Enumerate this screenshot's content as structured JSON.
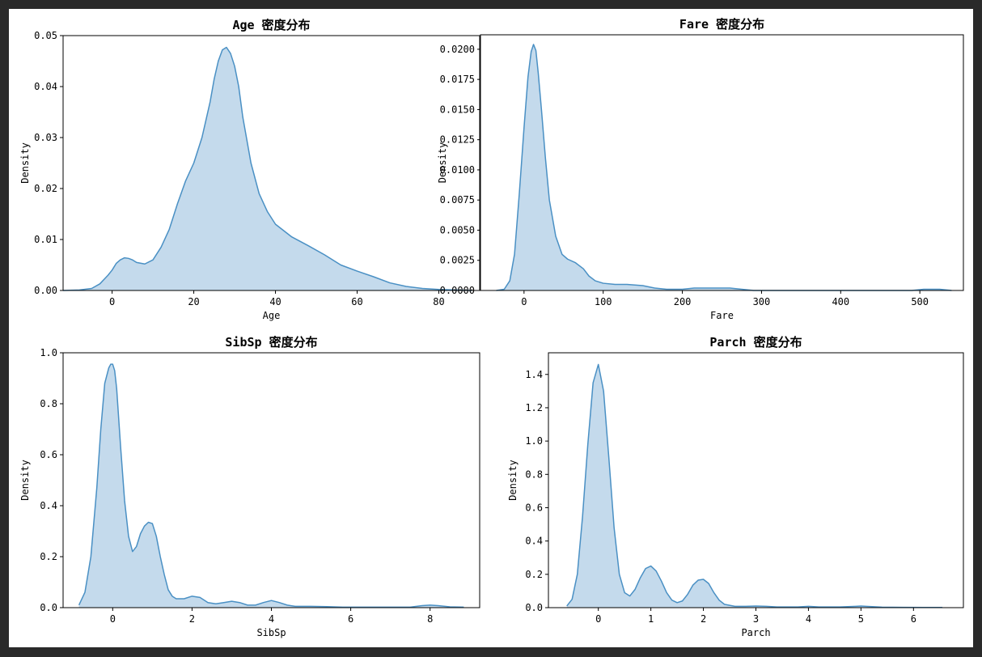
{
  "figure": {
    "background": "#ffffff",
    "frame_color": "#2a2a2a"
  },
  "style": {
    "line_color": "#4a90c4",
    "fill_color": "#c4daec"
  },
  "chart_data": [
    {
      "type": "area",
      "title": "Age 密度分布",
      "xlabel": "Age",
      "ylabel": "Density",
      "xlim": [
        -12,
        90
      ],
      "ylim": [
        0,
        0.05
      ],
      "xticks": [
        0,
        20,
        40,
        60,
        80
      ],
      "xtick_labels": [
        "0",
        "20",
        "40",
        "60",
        "80"
      ],
      "yticks": [
        0,
        0.01,
        0.02,
        0.03,
        0.04,
        0.05
      ],
      "ytick_labels": [
        "0.00",
        "0.01",
        "0.02",
        "0.03",
        "0.04",
        "0.05"
      ],
      "grid": false,
      "series": [
        {
          "x": [
            -12,
            -8,
            -5,
            -3,
            -1,
            0,
            1,
            2,
            3,
            4,
            5,
            6,
            8,
            10,
            12,
            14,
            16,
            18,
            20,
            22,
            24,
            25,
            26,
            27,
            28,
            29,
            30,
            31,
            32,
            34,
            36,
            38,
            40,
            44,
            48,
            52,
            56,
            60,
            64,
            68,
            72,
            76,
            80,
            84,
            88
          ],
          "y": [
            0,
            0.0001,
            0.0004,
            0.0013,
            0.003,
            0.004,
            0.0053,
            0.006,
            0.0064,
            0.0063,
            0.006,
            0.0055,
            0.0052,
            0.006,
            0.0085,
            0.012,
            0.017,
            0.0215,
            0.025,
            0.03,
            0.037,
            0.0415,
            0.045,
            0.0472,
            0.0477,
            0.0465,
            0.044,
            0.04,
            0.034,
            0.025,
            0.019,
            0.0155,
            0.013,
            0.0105,
            0.0088,
            0.007,
            0.005,
            0.0038,
            0.0027,
            0.0015,
            0.0008,
            0.0004,
            0.0002,
            0.0001,
            0
          ]
        }
      ]
    },
    {
      "type": "area",
      "title": "Fare 密度分布",
      "xlabel": "Fare",
      "ylabel": "Density",
      "xlim": [
        -55,
        555
      ],
      "ylim": [
        0,
        0.0212
      ],
      "xticks": [
        0,
        100,
        200,
        300,
        400,
        500
      ],
      "xtick_labels": [
        "0",
        "100",
        "200",
        "300",
        "400",
        "500"
      ],
      "yticks": [
        0,
        0.0025,
        0.005,
        0.0075,
        0.01,
        0.0125,
        0.015,
        0.0175,
        0.02
      ],
      "ytick_labels": [
        "0.0000",
        "0.0025",
        "0.0050",
        "0.0075",
        "0.0100",
        "0.0125",
        "0.0150",
        "0.0175",
        "0.0200"
      ],
      "grid": false,
      "series": [
        {
          "x": [
            -35,
            -25,
            -18,
            -12,
            -6,
            0,
            5,
            9,
            12,
            15,
            18,
            22,
            27,
            32,
            40,
            48,
            55,
            65,
            75,
            82,
            90,
            100,
            115,
            130,
            150,
            165,
            180,
            200,
            215,
            230,
            245,
            260,
            275,
            290,
            310,
            400,
            490,
            505,
            515,
            525,
            540
          ],
          "y": [
            0,
            0.0001,
            0.0008,
            0.003,
            0.008,
            0.0135,
            0.0177,
            0.0198,
            0.0204,
            0.0199,
            0.018,
            0.015,
            0.011,
            0.0075,
            0.0045,
            0.003,
            0.0026,
            0.0023,
            0.0018,
            0.0012,
            0.0008,
            0.0006,
            0.0005,
            0.0005,
            0.0004,
            0.0002,
            0.0001,
            0.0001,
            0.0002,
            0.0002,
            0.0002,
            0.0002,
            0.0001,
            0,
            0,
            0,
            0,
            0.0001,
            0.0001,
            0.0001,
            0
          ]
        }
      ]
    },
    {
      "type": "area",
      "title": "SibSp 密度分布",
      "xlabel": "SibSp",
      "ylabel": "Density",
      "xlim": [
        -1.25,
        9.25
      ],
      "ylim": [
        0,
        1.0
      ],
      "xticks": [
        0,
        2,
        4,
        6,
        8
      ],
      "xtick_labels": [
        "0",
        "2",
        "4",
        "6",
        "8"
      ],
      "yticks": [
        0,
        0.2,
        0.4,
        0.6,
        0.8,
        1.0
      ],
      "ytick_labels": [
        "0.0",
        "0.2",
        "0.4",
        "0.6",
        "0.8",
        "1.0"
      ],
      "grid": false,
      "series": [
        {
          "x": [
            -0.85,
            -0.7,
            -0.55,
            -0.4,
            -0.3,
            -0.2,
            -0.1,
            -0.05,
            0,
            0.05,
            0.1,
            0.2,
            0.3,
            0.4,
            0.5,
            0.6,
            0.7,
            0.8,
            0.9,
            1.0,
            1.1,
            1.2,
            1.3,
            1.4,
            1.5,
            1.6,
            1.8,
            2.0,
            2.2,
            2.4,
            2.6,
            2.8,
            3.0,
            3.2,
            3.4,
            3.6,
            3.8,
            4.0,
            4.2,
            4.4,
            4.6,
            5.0,
            5.4,
            5.8,
            6.5,
            7.5,
            7.8,
            8.0,
            8.2,
            8.5,
            8.85
          ],
          "y": [
            0.01,
            0.06,
            0.2,
            0.47,
            0.7,
            0.88,
            0.94,
            0.955,
            0.955,
            0.93,
            0.86,
            0.63,
            0.42,
            0.28,
            0.22,
            0.24,
            0.29,
            0.32,
            0.335,
            0.33,
            0.28,
            0.2,
            0.13,
            0.07,
            0.045,
            0.035,
            0.035,
            0.045,
            0.04,
            0.02,
            0.015,
            0.02,
            0.025,
            0.02,
            0.01,
            0.01,
            0.02,
            0.028,
            0.02,
            0.01,
            0.005,
            0.005,
            0.004,
            0.002,
            0.002,
            0.002,
            0.008,
            0.01,
            0.008,
            0.003,
            0.002
          ]
        }
      ]
    },
    {
      "type": "area",
      "title": "Parch 密度分布",
      "xlabel": "Parch",
      "ylabel": "Density",
      "xlim": [
        -0.95,
        6.95
      ],
      "ylim": [
        0,
        1.53
      ],
      "xticks": [
        0,
        1,
        2,
        3,
        4,
        5,
        6
      ],
      "xtick_labels": [
        "0",
        "1",
        "2",
        "3",
        "4",
        "5",
        "6"
      ],
      "yticks": [
        0,
        0.2,
        0.4,
        0.6,
        0.8,
        1.0,
        1.2,
        1.4
      ],
      "ytick_labels": [
        "0.0",
        "0.2",
        "0.4",
        "0.6",
        "0.8",
        "1.0",
        "1.2",
        "1.4"
      ],
      "grid": false,
      "series": [
        {
          "x": [
            -0.6,
            -0.5,
            -0.4,
            -0.3,
            -0.2,
            -0.1,
            0,
            0.1,
            0.2,
            0.3,
            0.4,
            0.5,
            0.6,
            0.7,
            0.8,
            0.9,
            1.0,
            1.1,
            1.2,
            1.3,
            1.4,
            1.5,
            1.6,
            1.7,
            1.8,
            1.9,
            2.0,
            2.1,
            2.2,
            2.3,
            2.4,
            2.6,
            2.8,
            3.0,
            3.2,
            3.4,
            3.8,
            4.0,
            4.2,
            4.6,
            4.9,
            5.0,
            5.1,
            5.4,
            5.8,
            6.2,
            6.55
          ],
          "y": [
            0.01,
            0.05,
            0.2,
            0.55,
            0.98,
            1.35,
            1.46,
            1.3,
            0.9,
            0.48,
            0.2,
            0.09,
            0.07,
            0.11,
            0.18,
            0.235,
            0.25,
            0.22,
            0.16,
            0.09,
            0.045,
            0.03,
            0.04,
            0.08,
            0.135,
            0.165,
            0.17,
            0.145,
            0.09,
            0.045,
            0.02,
            0.008,
            0.008,
            0.01,
            0.008,
            0.004,
            0.004,
            0.008,
            0.004,
            0.004,
            0.008,
            0.01,
            0.008,
            0.003,
            0.002,
            0.001,
            0.001
          ]
        }
      ]
    }
  ]
}
